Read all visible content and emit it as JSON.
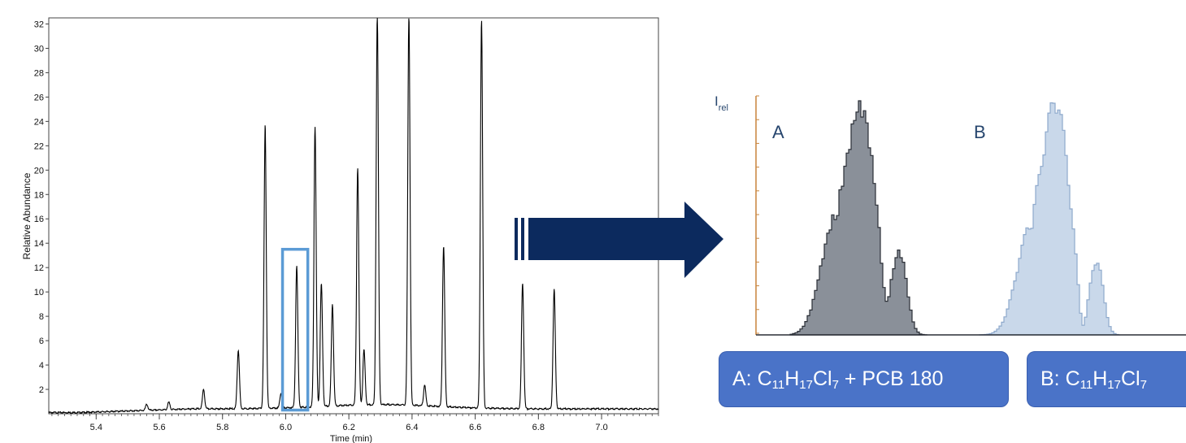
{
  "chart_data": [
    {
      "type": "line",
      "title": "",
      "xlabel": "Time (min)",
      "ylabel": "Relative Abundance",
      "xlim": [
        5.25,
        7.18
      ],
      "ylim": [
        0,
        32.5
      ],
      "x_ticks": [
        "5.4",
        "5.6",
        "5.8",
        "6.0",
        "6.2",
        "6.4",
        "6.6",
        "6.8",
        "7.0"
      ],
      "y_ticks": [
        "2",
        "4",
        "6",
        "8",
        "10",
        "12",
        "14",
        "16",
        "18",
        "20",
        "22",
        "24",
        "26",
        "28",
        "30",
        "32"
      ],
      "baseline": 0.3,
      "peaks": [
        {
          "x": 5.56,
          "y": 0.8
        },
        {
          "x": 5.63,
          "y": 0.9
        },
        {
          "x": 5.74,
          "y": 1.9
        },
        {
          "x": 5.85,
          "y": 5.1
        },
        {
          "x": 5.935,
          "y": 23.6
        },
        {
          "x": 5.985,
          "y": 1.5
        },
        {
          "x": 6.035,
          "y": 11.9
        },
        {
          "x": 6.093,
          "y": 23.3
        },
        {
          "x": 6.113,
          "y": 10.4
        },
        {
          "x": 6.148,
          "y": 8.7
        },
        {
          "x": 6.228,
          "y": 19.8
        },
        {
          "x": 6.248,
          "y": 4.8
        },
        {
          "x": 6.29,
          "y": 32.5
        },
        {
          "x": 6.39,
          "y": 32.5
        },
        {
          "x": 6.44,
          "y": 2.0
        },
        {
          "x": 6.5,
          "y": 13.5
        },
        {
          "x": 6.62,
          "y": 32.2
        },
        {
          "x": 6.75,
          "y": 10.6
        },
        {
          "x": 6.85,
          "y": 10.1
        }
      ],
      "highlight_range": {
        "x": [
          5.99,
          6.07
        ],
        "y": [
          0.3,
          13.5
        ]
      },
      "highlight_color": "#5b9bd5"
    },
    {
      "type": "area",
      "ylabel_main": "I",
      "ylabel_sub": "rel",
      "series": [
        {
          "name": "A",
          "color": "#8a9099",
          "edge": "#2a2e36"
        },
        {
          "name": "B",
          "color": "#c9d8ea",
          "edge": "#8ea9cc"
        }
      ]
    }
  ],
  "labels": {
    "box_a": {
      "prefix": "A: C",
      "s1": "11",
      "h": "H",
      "s2": "17",
      "cl": "Cl",
      "s3": "7",
      "suffix": "+ PCB 180"
    },
    "box_b": {
      "prefix": "B: C",
      "s1": "11",
      "h": "H",
      "s2": "17",
      "cl": "Cl",
      "s3": "7"
    }
  },
  "colors": {
    "arrow": "#0c2a5e",
    "axis_orange": "#c8843c",
    "label_box": "#4a73c8"
  }
}
